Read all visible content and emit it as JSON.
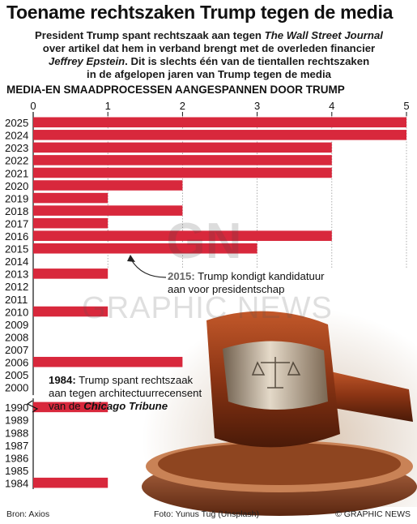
{
  "header": {
    "title": "Toename rechtszaken Trump tegen de media",
    "subtitle_lines": [
      "President Trump spant rechtszaak aan tegen The Wall Street Journal",
      "over artikel dat hem in verband brengt met de overleden financier",
      "Jeffrey Epstein. Dit is slechts één van de tientallen rechtszaken",
      "in de afgelopen jaren van Trump tegen de media"
    ],
    "subtitle_italics": [
      "The Wall Street Journal",
      "Jeffrey Epstein"
    ]
  },
  "chart_data": {
    "type": "bar",
    "orientation": "horizontal",
    "title": "MEDIA-EN SMAADPROCESSEN AANGESPANNEN DOOR TRUMP",
    "xlim": [
      0,
      5
    ],
    "xticks": [
      0,
      1,
      2,
      3,
      4,
      5
    ],
    "axis_break_between": [
      "2000",
      "1990"
    ],
    "categories": [
      "2025",
      "2024",
      "2023",
      "2022",
      "2021",
      "2020",
      "2019",
      "2018",
      "2017",
      "2016",
      "2015",
      "2014",
      "2013",
      "2012",
      "2011",
      "2010",
      "2009",
      "2008",
      "2007",
      "2006",
      "2005",
      "2000",
      "1990",
      "1989",
      "1988",
      "1987",
      "1986",
      "1985",
      "1984"
    ],
    "values": [
      5,
      5,
      4,
      4,
      4,
      2,
      1,
      2,
      1,
      4,
      3,
      0,
      1,
      0,
      0,
      1,
      0,
      0,
      0,
      2,
      0,
      0,
      1,
      0,
      0,
      0,
      0,
      0,
      1
    ],
    "bar_color": "#d8283c",
    "annotations": [
      {
        "year": "2015",
        "bold": "2015:",
        "text": " Trump kondigt kandidatuur aan voor presidentschap"
      },
      {
        "year": "1984",
        "bold": "1984:",
        "text": " Trump spant rechtszaak aan tegen architectuurrecensent van de",
        "italic_bold": "Chicago Tribune"
      }
    ]
  },
  "watermark": {
    "logo": "GN",
    "text": "GRAPHIC NEWS"
  },
  "footer": {
    "source": "Bron: Axios",
    "photo": "Foto: Yunus Tuğ (Unsplash)",
    "credit": "© GRAPHIC NEWS"
  }
}
